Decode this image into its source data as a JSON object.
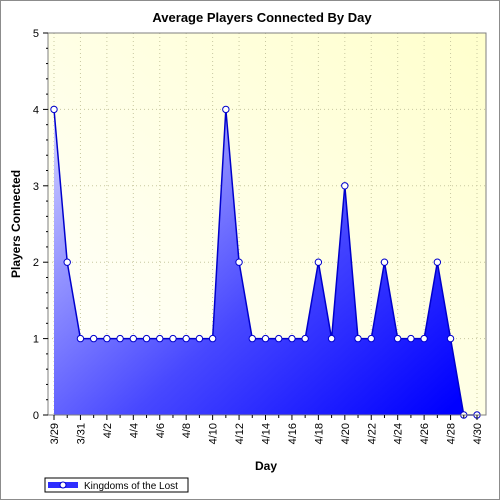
{
  "chart_data": {
    "type": "area",
    "title": "Average Players Connected By Day",
    "xlabel": "Day",
    "ylabel": "Players Connected",
    "ylim": [
      0,
      5
    ],
    "yticks": [
      "0",
      "1",
      "2",
      "3",
      "4",
      "5"
    ],
    "x": [
      "3/29",
      "3/30",
      "3/31",
      "4/1",
      "4/2",
      "4/3",
      "4/4",
      "4/5",
      "4/6",
      "4/7",
      "4/8",
      "4/9",
      "4/10",
      "4/11",
      "4/12",
      "4/13",
      "4/14",
      "4/15",
      "4/16",
      "4/17",
      "4/18",
      "4/19",
      "4/20",
      "4/21",
      "4/22",
      "4/23",
      "4/24",
      "4/25",
      "4/26",
      "4/27",
      "4/28",
      "4/29",
      "4/30"
    ],
    "xtick_labels": [
      "3/29",
      "3/31",
      "4/2",
      "4/4",
      "4/6",
      "4/8",
      "4/10",
      "4/12",
      "4/14",
      "4/16",
      "4/18",
      "4/20",
      "4/22",
      "4/24",
      "4/26",
      "4/28",
      "4/30"
    ],
    "series": [
      {
        "name": "Kingdoms of the Lost",
        "values": [
          4,
          2,
          1,
          1,
          1,
          1,
          1,
          1,
          1,
          1,
          1,
          1,
          1,
          4,
          2,
          1,
          1,
          1,
          1,
          1,
          2,
          1,
          3,
          1,
          1,
          2,
          1,
          1,
          1,
          2,
          1,
          0,
          0
        ]
      }
    ],
    "grid": true,
    "legend_position": "bottom-left",
    "colors": {
      "background_top": "#ffffcc",
      "background_bottom": "#ffffff",
      "fill_light": "#c8c8ff",
      "fill_dark": "#0000ff",
      "line": "#0000cc",
      "marker_fill": "#ffffff"
    }
  }
}
